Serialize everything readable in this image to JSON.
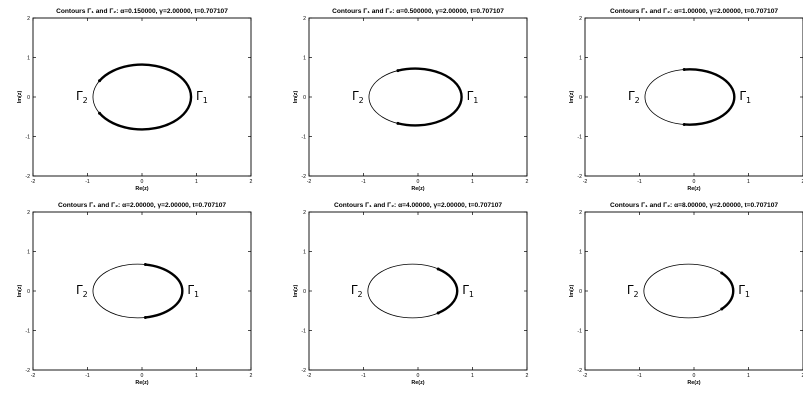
{
  "chart_data": [
    {
      "type": "line",
      "title": "Contours Γ₁ and Γ₂:   α=0.150000,  γ=2.00000,  t=0.707107",
      "xlabel": "Re(z)",
      "ylabel": "Im(z)",
      "xlim": [
        -2,
        2
      ],
      "ylim": [
        -2,
        2
      ],
      "xticks": [
        "-2",
        "-1",
        "0",
        "1",
        "2"
      ],
      "yticks": [
        "-2",
        "-1",
        "0",
        "1",
        "2"
      ],
      "grid": false,
      "contour": {
        "center_x": 0.0,
        "center_y": 0.0,
        "radius_x": 0.9,
        "radius_y": 0.82
      },
      "gamma1_arc_deg": [
        -150,
        150
      ],
      "labels": {
        "gamma1": "Γ",
        "gamma1_sub": "1",
        "gamma2": "Γ",
        "gamma2_sub": "2"
      }
    },
    {
      "type": "line",
      "title": "Contours Γ₁ and Γ₂:   α=0.500000,  γ=2.00000,  t=0.707107",
      "xlabel": "Re(z)",
      "ylabel": "Im(z)",
      "xlim": [
        -2,
        2
      ],
      "ylim": [
        -2,
        2
      ],
      "xticks": [
        "-2",
        "-1",
        "0",
        "1",
        "2"
      ],
      "yticks": [
        "-2",
        "-1",
        "0",
        "1",
        "2"
      ],
      "grid": false,
      "contour": {
        "center_x": -0.05,
        "center_y": 0.0,
        "radius_x": 0.85,
        "radius_y": 0.72
      },
      "gamma1_arc_deg": [
        -112,
        112
      ],
      "labels": {
        "gamma1": "Γ",
        "gamma1_sub": "1",
        "gamma2": "Γ",
        "gamma2_sub": "2"
      }
    },
    {
      "type": "line",
      "title": "Contours Γ₁ and Γ₂:   α=1.00000,  γ=2.00000,  t=0.707107",
      "xlabel": "Re(z)",
      "ylabel": "Im(z)",
      "xlim": [
        -2,
        2
      ],
      "ylim": [
        -2,
        2
      ],
      "xticks": [
        "-2",
        "-1",
        "0",
        "1",
        "2"
      ],
      "yticks": [
        "-2",
        "-1",
        "0",
        "1",
        "2"
      ],
      "grid": false,
      "contour": {
        "center_x": -0.08,
        "center_y": 0.0,
        "radius_x": 0.82,
        "radius_y": 0.7
      },
      "gamma1_arc_deg": [
        -97,
        97
      ],
      "labels": {
        "gamma1": "Γ",
        "gamma1_sub": "1",
        "gamma2": "Γ",
        "gamma2_sub": "2"
      }
    },
    {
      "type": "line",
      "title": "Contours Γ₁ and Γ₂:   α=2.00000,  γ=2.00000,  t=0.707107",
      "xlabel": "Re(z)",
      "ylabel": "Im(z)",
      "xlim": [
        -2,
        2
      ],
      "ylim": [
        -2,
        2
      ],
      "xticks": [
        "-2",
        "-1",
        "0",
        "1",
        "2"
      ],
      "yticks": [
        "-2",
        "-1",
        "0",
        "1",
        "2"
      ],
      "grid": false,
      "contour": {
        "center_x": -0.08,
        "center_y": 0.0,
        "radius_x": 0.82,
        "radius_y": 0.68
      },
      "gamma1_arc_deg": [
        -80,
        80
      ],
      "labels": {
        "gamma1": "Γ",
        "gamma1_sub": "1",
        "gamma2": "Γ",
        "gamma2_sub": "2"
      }
    },
    {
      "type": "line",
      "title": "Contours Γ₁ and Γ₂:   α=4.00000,  γ=2.00000,  t=0.707107",
      "xlabel": "Re(z)",
      "ylabel": "Im(z)",
      "xlim": [
        -2,
        2
      ],
      "ylim": [
        -2,
        2
      ],
      "xticks": [
        "-2",
        "-1",
        "0",
        "1",
        "2"
      ],
      "yticks": [
        "-2",
        "-1",
        "0",
        "1",
        "2"
      ],
      "grid": false,
      "contour": {
        "center_x": -0.1,
        "center_y": 0.0,
        "radius_x": 0.82,
        "radius_y": 0.68
      },
      "gamma1_arc_deg": [
        -55,
        55
      ],
      "labels": {
        "gamma1": "Γ",
        "gamma1_sub": "1",
        "gamma2": "Γ",
        "gamma2_sub": "2"
      }
    },
    {
      "type": "line",
      "title": "Contours Γ₁ and Γ₂:   α=8.00000,  γ=2.00000,  t=0.707107",
      "xlabel": "Re(z)",
      "ylabel": "Im(z)",
      "xlim": [
        -2,
        2
      ],
      "ylim": [
        -2,
        2
      ],
      "xticks": [
        "-2",
        "-1",
        "0",
        "1",
        "2"
      ],
      "yticks": [
        "-2",
        "-1",
        "0",
        "1",
        "2"
      ],
      "grid": false,
      "contour": {
        "center_x": -0.1,
        "center_y": 0.0,
        "radius_x": 0.82,
        "radius_y": 0.68
      },
      "gamma1_arc_deg": [
        -42,
        42
      ],
      "labels": {
        "gamma1": "Γ",
        "gamma1_sub": "1",
        "gamma2": "Γ",
        "gamma2_sub": "2"
      }
    }
  ]
}
